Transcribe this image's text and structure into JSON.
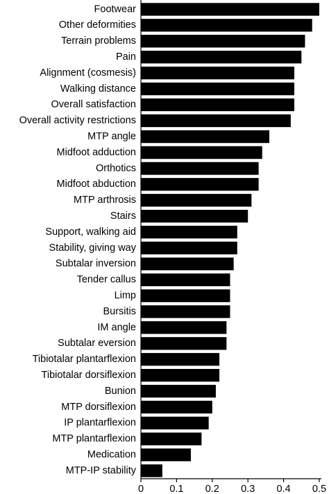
{
  "chart_data": {
    "type": "barh",
    "color": "#000000",
    "categories": [
      "Footwear",
      "Other deformities",
      "Terrain problems",
      "Pain",
      "Alignment (cosmesis)",
      "Walking distance",
      "Overall satisfaction",
      "Overall activity restrictions",
      "MTP angle",
      "Midfoot adduction",
      "Orthotics",
      "Midfoot abduction",
      "MTP arthrosis",
      "Stairs",
      "Support, walking aid",
      "Stability, giving way",
      "Subtalar inversion",
      "Tender callus",
      "Limp",
      "Bursitis",
      "IM angle",
      "Subtalar eversion",
      "Tibiotalar plantarflexion",
      "Tibiotalar dorsiflexion",
      "Bunion",
      "MTP dorsiflexion",
      "IP plantarflexion",
      "MTP plantarflexion",
      "Medication",
      "MTP-IP stability"
    ],
    "values": [
      0.5,
      0.48,
      0.46,
      0.45,
      0.43,
      0.43,
      0.43,
      0.42,
      0.36,
      0.34,
      0.33,
      0.33,
      0.31,
      0.3,
      0.27,
      0.27,
      0.26,
      0.25,
      0.25,
      0.25,
      0.24,
      0.24,
      0.22,
      0.22,
      0.21,
      0.2,
      0.19,
      0.17,
      0.14,
      0.06
    ],
    "xlim": [
      0,
      0.5
    ],
    "xticks": [
      0,
      0.1,
      0.2,
      0.3,
      0.4,
      0.5
    ]
  }
}
